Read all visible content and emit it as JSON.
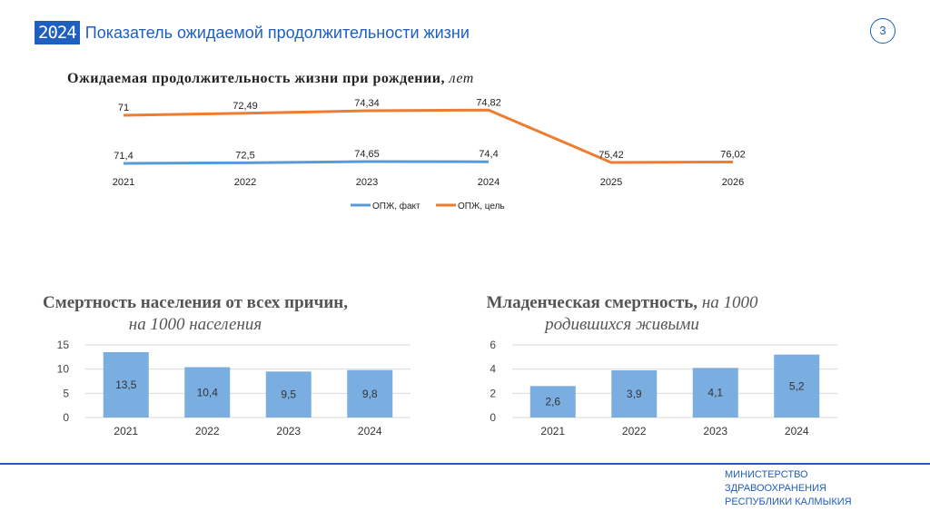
{
  "header": {
    "year_badge": "2024",
    "title": "Показатель ожидаемой продолжительности жизни",
    "page_number": "3"
  },
  "footer": {
    "org_lines": [
      "МИНИСТЕРСТВО",
      "ЗДРАВООХРАНЕНИЯ",
      "РЕСПУБЛИКИ КАЛМЫКИЯ"
    ]
  },
  "chart_data": [
    {
      "type": "line",
      "title": "Ожидаемая продолжительность жизни при рождении,",
      "title_unit": "лет",
      "x": [
        "2021",
        "2022",
        "2023",
        "2024",
        "2025",
        "2026"
      ],
      "series": [
        {
          "name": "ОПЖ, факт",
          "color": "#5b9bd5",
          "values": [
            71.4,
            72.5,
            74.65,
            74.4,
            null,
            null
          ],
          "labels": [
            "71,4",
            "72,5",
            "74,65",
            "74,4",
            "",
            ""
          ]
        },
        {
          "name": "ОПЖ, цель",
          "color": "#ed7d31",
          "values": [
            71,
            72.49,
            74.34,
            74.82,
            75.42,
            76.02
          ],
          "labels": [
            "71",
            "72,49",
            "74,34",
            "74,82",
            "75,42",
            "76,02"
          ]
        }
      ],
      "legend": "bottom",
      "grid": false
    },
    {
      "type": "bar",
      "title": "Смертность населения от всех причин,",
      "title_unit": "на 1000 населения",
      "categories": [
        "2021",
        "2022",
        "2023",
        "2024"
      ],
      "values": [
        13.5,
        10.4,
        9.5,
        9.8
      ],
      "labels": [
        "13,5",
        "10,4",
        "9,5",
        "9,8"
      ],
      "ylim": [
        0,
        15
      ],
      "yticks": [
        "0",
        "5",
        "10",
        "15"
      ],
      "color": "#7aaee0",
      "grid": true
    },
    {
      "type": "bar",
      "title": "Младенческая смертность,",
      "title_unit": "на 1000 родившихся живыми",
      "categories": [
        "2021",
        "2022",
        "2023",
        "2024"
      ],
      "values": [
        2.6,
        3.9,
        4.1,
        5.2
      ],
      "labels": [
        "2,6",
        "3,9",
        "4,1",
        "5,2"
      ],
      "ylim": [
        0,
        6
      ],
      "yticks": [
        "0",
        "2",
        "4",
        "6"
      ],
      "color": "#7aaee0",
      "grid": true
    }
  ]
}
